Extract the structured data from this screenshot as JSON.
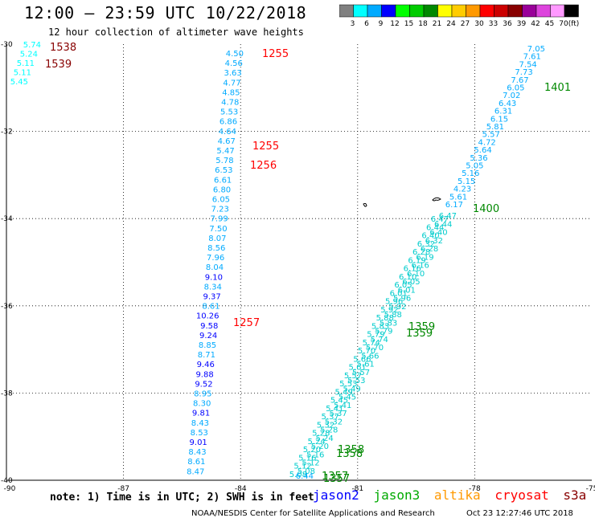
{
  "header": {
    "title": "12:00 – 23:59 UTC 10/22/2018",
    "subtitle": "12 hour collection of altimeter wave heights"
  },
  "legend": {
    "unit": "(ft)",
    "bins": [
      {
        "label": "3",
        "color": "#808080"
      },
      {
        "label": "6",
        "color": "#00ffff"
      },
      {
        "label": "9",
        "color": "#00aaff"
      },
      {
        "label": "12",
        "color": "#0000ff"
      },
      {
        "label": "15",
        "color": "#00ff00"
      },
      {
        "label": "18",
        "color": "#00cc00"
      },
      {
        "label": "21",
        "color": "#008800"
      },
      {
        "label": "24",
        "color": "#ffff00"
      },
      {
        "label": "27",
        "color": "#ffcc00"
      },
      {
        "label": "30",
        "color": "#ff9900"
      },
      {
        "label": "33",
        "color": "#ff0000"
      },
      {
        "label": "36",
        "color": "#cc0000"
      },
      {
        "label": "39",
        "color": "#880000"
      },
      {
        "label": "42",
        "color": "#990099"
      },
      {
        "label": "45",
        "color": "#dd44dd"
      },
      {
        "label": "70",
        "color": "#ff99ff"
      },
      {
        "label": "",
        "color": "#000000"
      }
    ]
  },
  "map_axes": {
    "lon_ticks": [
      "-90",
      "-87",
      "-84",
      "-81",
      "-78",
      "-75"
    ],
    "lat_ticks": [
      "-30",
      "-32",
      "-34",
      "-36",
      "-38",
      "-40"
    ]
  },
  "tracks": {
    "track_a": [
      "4.50",
      "4.56",
      "3.63",
      "4.77",
      "4.85",
      "4.78",
      "5.53",
      "6.86",
      "4.64",
      "4.67",
      "5.47",
      "5.78",
      "6.53",
      "6.61",
      "6.80",
      "6.05",
      "7.23",
      "7.99",
      "7.50",
      "8.07",
      "8.56",
      "7.96",
      "8.04",
      "9.10",
      "8.34",
      "9.37",
      "8.61",
      "10.26",
      "9.58",
      "9.24",
      "8.85",
      "8.71",
      "9.46",
      "9.88",
      "9.52",
      "8.95",
      "8.30",
      "9.81",
      "8.43",
      "8.53",
      "9.01",
      "8.43",
      "8.61",
      "8.47"
    ],
    "track_a_colors": [
      "#00aaff",
      "#00aaff",
      "#00aaff",
      "#00aaff",
      "#00aaff",
      "#00aaff",
      "#00aaff",
      "#00aaff",
      "#00aaff",
      "#00aaff",
      "#00aaff",
      "#00aaff",
      "#00aaff",
      "#00aaff",
      "#00aaff",
      "#00aaff",
      "#00aaff",
      "#00aaff",
      "#00aaff",
      "#00aaff",
      "#00aaff",
      "#00aaff",
      "#00aaff",
      "#0000ff",
      "#00aaff",
      "#0000ff",
      "#00aaff",
      "#0000ff",
      "#0000ff",
      "#0000ff",
      "#00aaff",
      "#00aaff",
      "#0000ff",
      "#0000ff",
      "#0000ff",
      "#00aaff",
      "#00aaff",
      "#0000ff",
      "#00aaff",
      "#00aaff",
      "#0000ff",
      "#00aaff",
      "#00aaff",
      "#00aaff"
    ],
    "track_b": [
      "7.05",
      "7.61",
      "7.54",
      "7.73",
      "7.67",
      "6.05",
      "7.02",
      "6.43",
      "6.31",
      "6.15",
      "5.81",
      "5.57",
      "4.72",
      "5.64",
      "5.36",
      "5.05",
      "5.16",
      "5.15",
      "4.23",
      "5.61",
      "6.17"
    ],
    "track_c": [
      "5.74",
      "5.24",
      "5.11",
      "5.11",
      "5.45"
    ],
    "track_d_labels": [
      "6.47",
      "6.44",
      "6.40",
      "6.32",
      "6.28",
      "6.19",
      "6.16",
      "6.10",
      "6.05",
      "6.01",
      "5.96",
      "5.92",
      "5.88",
      "5.83",
      "5.79",
      "5.74",
      "5.70",
      "5.66",
      "5.61",
      "5.57",
      "5.53",
      "5.49",
      "5.45",
      "5.41",
      "5.37",
      "5.32",
      "5.28",
      "5.24",
      "5.20",
      "5.16",
      "5.12",
      "5.08"
    ],
    "track_d_bottom": "6.44"
  },
  "time_labels": [
    {
      "text": "1538",
      "color": "#880000"
    },
    {
      "text": "1539",
      "color": "#880000"
    },
    {
      "text": "1255",
      "color": "#ff0000"
    },
    {
      "text": "1255",
      "color": "#ff0000"
    },
    {
      "text": "1256",
      "color": "#ff0000"
    },
    {
      "text": "1257",
      "color": "#ff0000"
    },
    {
      "text": "1401",
      "color": "#008800"
    },
    {
      "text": "1400",
      "color": "#008800"
    },
    {
      "text": "1359",
      "color": "#008800"
    },
    {
      "text": "1359",
      "color": "#008800"
    },
    {
      "text": "1358",
      "color": "#008800"
    },
    {
      "text": "1358",
      "color": "#008800"
    },
    {
      "text": "1357",
      "color": "#008800"
    },
    {
      "text": "1357",
      "color": "#008800"
    }
  ],
  "footer": {
    "note": "note: 1) Time is in UTC; 2) SWH is in feet",
    "satellites": [
      {
        "name": "jason2",
        "color": "#0000ff"
      },
      {
        "name": "jason3",
        "color": "#00aa00"
      },
      {
        "name": "altika",
        "color": "#ff9900"
      },
      {
        "name": "cryosat",
        "color": "#ff0000"
      },
      {
        "name": "s3a",
        "color": "#880000"
      }
    ],
    "credit": "NOAA/NESDIS Center for Satellite Applications and Research",
    "timestamp": "Oct 23 12:27:46 UTC 2018"
  }
}
